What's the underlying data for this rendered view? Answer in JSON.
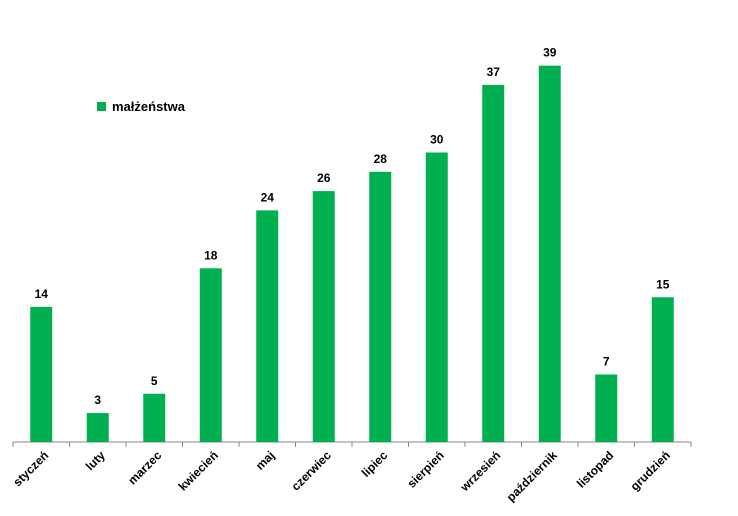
{
  "chart_data": {
    "type": "bar",
    "categories": [
      "styczeń",
      "luty",
      "marzec",
      "kwiecień",
      "maj",
      "czerwiec",
      "lipiec",
      "sierpień",
      "wrzesień",
      "październik",
      "listopad",
      "grudzień"
    ],
    "series": [
      {
        "name": "małżeństwa",
        "color": "#00b050",
        "values": [
          14,
          3,
          5,
          18,
          24,
          26,
          28,
          30,
          37,
          39,
          7,
          15
        ]
      }
    ],
    "ylim": [
      0,
      40
    ],
    "legend": "top-left"
  }
}
